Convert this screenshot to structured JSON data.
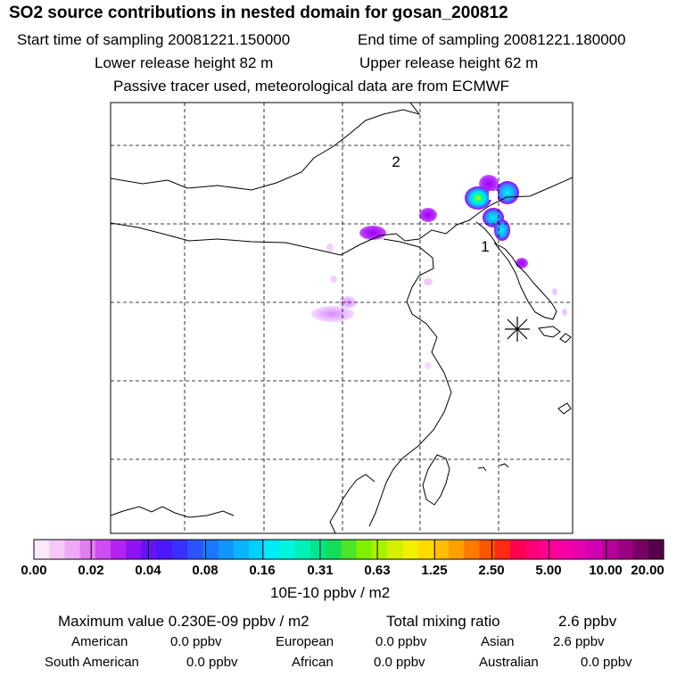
{
  "header": {
    "title": "SO2 source contributions in nested domain for gosan_200812",
    "start_time": "Start time of sampling 20081221.150000",
    "end_time": "End time of sampling 20081221.180000",
    "lower_height": "Lower release height   82 m",
    "upper_height": "Upper release height   62 m",
    "description": "Passive tracer used, meteorological data are from ECMWF"
  },
  "map": {
    "region_labels": [
      "1",
      "2"
    ],
    "release_marker": "asterisk-icon"
  },
  "colorbar": {
    "tick_labels": [
      "0.00",
      "0.02",
      "0.04",
      "0.08",
      "0.16",
      "0.31",
      "0.63",
      "1.25",
      "2.50",
      "5.00",
      "10.00",
      "20.00"
    ],
    "unit": "10E-10 ppbv / m2",
    "colors": [
      "#fbe8fc",
      "#f5c9f8",
      "#eeaaf5",
      "#e37df2",
      "#cf4df2",
      "#b322f2",
      "#8c14f2",
      "#6614f5",
      "#4b18fa",
      "#3b30ff",
      "#2b54ff",
      "#1a78ff",
      "#1196ff",
      "#0bb4ff",
      "#00d0ff",
      "#00ecfa",
      "#00f5dc",
      "#00f0b8",
      "#00e68e",
      "#14dc5a",
      "#4ce628",
      "#7ef000",
      "#a8f200",
      "#d2f000",
      "#f0f000",
      "#ffdc00",
      "#ffbe00",
      "#ffa000",
      "#ff7a00",
      "#ff5500",
      "#ff2a14",
      "#ff0050",
      "#ff0078",
      "#ff0096",
      "#f500a5",
      "#e600b0",
      "#d200b4",
      "#b90099",
      "#9b0080",
      "#780064",
      "#55004a"
    ]
  },
  "summary": {
    "max_value_label": "Maximum value  0.230E-09 ppbv / m2",
    "total_label": "Total mixing ratio",
    "total_value": "2.6 ppbv",
    "regions": [
      {
        "name": "American",
        "value": "0.0 ppbv"
      },
      {
        "name": "European",
        "value": "0.0 ppbv"
      },
      {
        "name": "Asian",
        "value": "2.6 ppbv"
      },
      {
        "name": "South American",
        "value": "0.0 ppbv"
      },
      {
        "name": "African",
        "value": "0.0 ppbv"
      },
      {
        "name": "Australian",
        "value": "0.0 ppbv"
      }
    ]
  },
  "style": {
    "frame_color": "#000000",
    "background": "#ffffff",
    "plume_core": "#00ffff",
    "plume_peak": "#d7ff00",
    "plume_edge": "#9a00ff"
  }
}
